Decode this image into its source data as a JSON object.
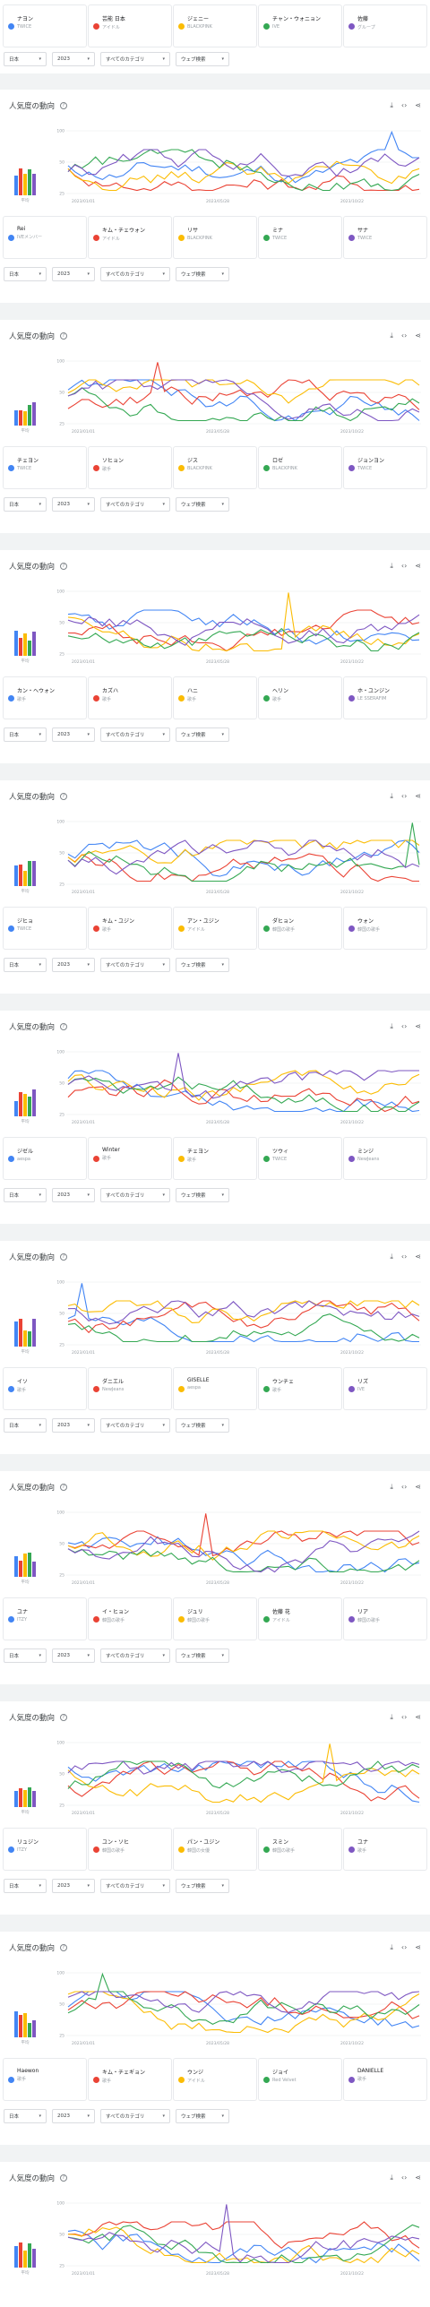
{
  "ui": {
    "section_title": "人気度の動向",
    "help": "?",
    "download_icon": "download-icon",
    "embed_icon": "embed-icon",
    "share_icon": "share-icon",
    "avg_label": "平均",
    "filters": {
      "region": "日本",
      "year": "2023",
      "category": "すべてのカテゴリ",
      "search_type": "ウェブ検索"
    },
    "x_ticks": [
      "2023/01/01",
      "2023/05/28",
      "2023/10/22"
    ],
    "y_ticks": [
      "100",
      "50",
      "25"
    ],
    "colors": [
      "#4285f4",
      "#ea4335",
      "#fbbc04",
      "#34a853",
      "#7e57c2"
    ]
  },
  "top_partial": {
    "legend": [
      {
        "name": "ナヨン",
        "sub": "TWICE"
      },
      {
        "name": "芸能 日本",
        "sub": "アイドル"
      },
      {
        "name": "ジェニー",
        "sub": "BLACKPINK"
      },
      {
        "name": "チャン・ウォニョン",
        "sub": "IVE"
      },
      {
        "name": "佐藤",
        "sub": "グループ"
      }
    ]
  },
  "sections": [
    {
      "legend": [
        {
          "name": "Rei",
          "sub": "IVEメンバー"
        },
        {
          "name": "キム・チェウォン",
          "sub": "アイドル"
        },
        {
          "name": "リサ",
          "sub": "BLACKPINK"
        },
        {
          "name": "ミナ",
          "sub": "TWICE"
        },
        {
          "name": "サナ",
          "sub": "TWICE"
        }
      ]
    },
    {
      "legend": [
        {
          "name": "チェヨン",
          "sub": "TWICE"
        },
        {
          "name": "ソヒョン",
          "sub": "歌手"
        },
        {
          "name": "ジス",
          "sub": "BLACKPINK"
        },
        {
          "name": "ロゼ",
          "sub": "BLACKPINK"
        },
        {
          "name": "ジョンヨン",
          "sub": "TWICE"
        }
      ]
    },
    {
      "legend": [
        {
          "name": "カン・ヘウォン",
          "sub": "歌手"
        },
        {
          "name": "カズハ",
          "sub": "歌手"
        },
        {
          "name": "ハニ",
          "sub": "歌手"
        },
        {
          "name": "ヘリン",
          "sub": "歌手"
        },
        {
          "name": "ホ・ユンジン",
          "sub": "LE SSERAFIM"
        }
      ]
    },
    {
      "legend": [
        {
          "name": "ジヒョ",
          "sub": "TWICE"
        },
        {
          "name": "キム・ユジン",
          "sub": "歌手"
        },
        {
          "name": "アン・ユジン",
          "sub": "アイドル"
        },
        {
          "name": "ダヒョン",
          "sub": "韓国の歌手"
        },
        {
          "name": "ウォン",
          "sub": "韓国の歌手"
        }
      ]
    },
    {
      "legend": [
        {
          "name": "ジゼル",
          "sub": "aespa"
        },
        {
          "name": "Winter",
          "sub": "歌手"
        },
        {
          "name": "チェヨン",
          "sub": "歌手"
        },
        {
          "name": "ツウィ",
          "sub": "TWICE"
        },
        {
          "name": "ミンジ",
          "sub": "NewJeans"
        }
      ]
    },
    {
      "legend": [
        {
          "name": "イソ",
          "sub": "歌手"
        },
        {
          "name": "ダニエル",
          "sub": "NewJeans"
        },
        {
          "name": "GISELLE",
          "sub": "aespa"
        },
        {
          "name": "ウンチェ",
          "sub": "歌手"
        },
        {
          "name": "リズ",
          "sub": "IVE"
        }
      ]
    },
    {
      "legend": [
        {
          "name": "ユナ",
          "sub": "ITZY"
        },
        {
          "name": "イ・ヒョン",
          "sub": "韓国の歌手"
        },
        {
          "name": "ジュリ",
          "sub": "韓国の歌手"
        },
        {
          "name": "佐藤 花",
          "sub": "アイドル"
        },
        {
          "name": "リア",
          "sub": "韓国の歌手"
        }
      ]
    },
    {
      "legend": [
        {
          "name": "リュジン",
          "sub": "ITZY"
        },
        {
          "name": "ユン・ソヒ",
          "sub": "韓国の歌手"
        },
        {
          "name": "パン・ユジン",
          "sub": "韓国の女優"
        },
        {
          "name": "スミン",
          "sub": "韓国の歌手"
        },
        {
          "name": "ユナ",
          "sub": "歌手"
        }
      ]
    },
    {
      "legend": [
        {
          "name": "Haewon",
          "sub": "歌手"
        },
        {
          "name": "キム・チェギョン",
          "sub": "歌手"
        },
        {
          "name": "ウンジ",
          "sub": "アイドル"
        },
        {
          "name": "ジョイ",
          "sub": "Red Velvet"
        },
        {
          "name": "DANIELLE",
          "sub": "歌手"
        }
      ]
    },
    {
      "legend": []
    }
  ]
}
